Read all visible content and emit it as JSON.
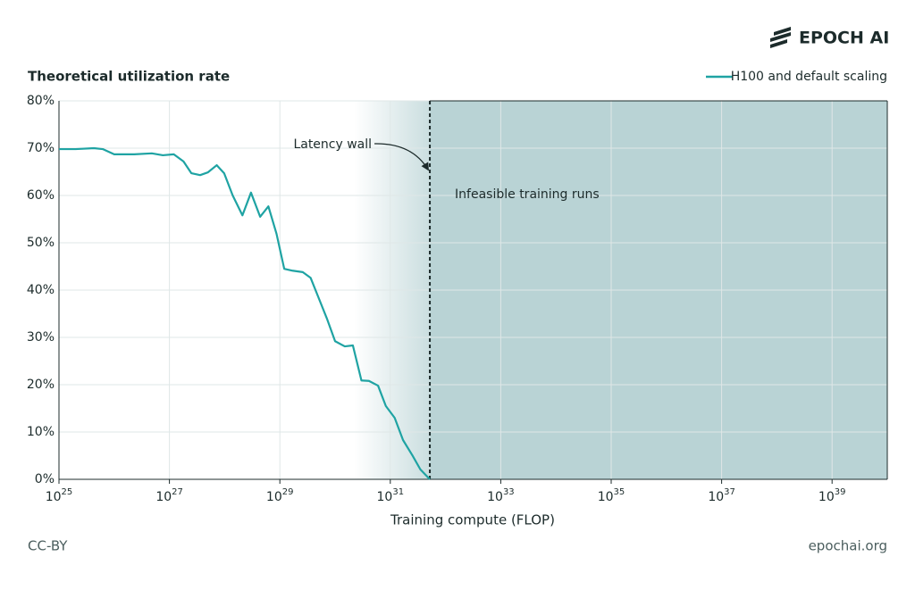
{
  "logo": "EPOCH AI",
  "footer": {
    "left": "CC-BY",
    "right": "epochai.org"
  },
  "chart_data": {
    "type": "line",
    "y_title": "Theoretical utilization rate",
    "x_title": "Training compute (FLOP)",
    "x_scale": "log",
    "grid": true,
    "legend": "top-right",
    "xlim": [
      1e+25,
      1e+40
    ],
    "xticks": [
      {
        "value": 1e+25,
        "label": "10",
        "exponent": "25"
      },
      {
        "value": 1e+27,
        "label": "10",
        "exponent": "27"
      },
      {
        "value": 1e+29,
        "label": "10",
        "exponent": "29"
      },
      {
        "value": 1e+31,
        "label": "10",
        "exponent": "31"
      },
      {
        "value": 1e+33,
        "label": "10",
        "exponent": "33"
      },
      {
        "value": 1e+35,
        "label": "10",
        "exponent": "35"
      },
      {
        "value": 1e+37,
        "label": "10",
        "exponent": "37"
      },
      {
        "value": 1e+39,
        "label": "10",
        "exponent": "39"
      }
    ],
    "ylim": [
      0,
      80
    ],
    "yticks": [
      {
        "value": 0,
        "label": "0%"
      },
      {
        "value": 10,
        "label": "10%"
      },
      {
        "value": 20,
        "label": "20%"
      },
      {
        "value": 30,
        "label": "30%"
      },
      {
        "value": 40,
        "label": "40%"
      },
      {
        "value": 50,
        "label": "50%"
      },
      {
        "value": 60,
        "label": "60%"
      },
      {
        "value": 70,
        "label": "70%"
      },
      {
        "value": 80,
        "label": "80%"
      }
    ],
    "latency_wall": {
      "label": "Latency wall",
      "x": 5.2e+31
    },
    "infeasible_region": {
      "label": "Infeasible training runs",
      "color": "#b9d3d5"
    },
    "series": [
      {
        "name": "H100 and default scaling",
        "color": "#1fa3a3",
        "x": [
          1e+25,
          2e+25,
          4.3e+25,
          6.2e+25,
          1e+26,
          2.3e+26,
          4.8e+26,
          7.6e+26,
          1.2e+27,
          1.8e+27,
          2.5e+27,
          3.6e+27,
          5e+27,
          7.2e+27,
          9.8e+27,
          1.4e+28,
          2.1e+28,
          3e+28,
          4.4e+28,
          6.2e+28,
          8.7e+28,
          1.2e+29,
          1.7e+29,
          2.6e+29,
          3.6e+29,
          4.9e+29,
          7.1e+29,
          1e+30,
          1.5e+30,
          2.1e+30,
          3e+30,
          4.1e+30,
          6e+30,
          8.3e+30,
          1.2e+31,
          1.7e+31,
          2.5e+31,
          3.5e+31,
          5.2e+31
        ],
        "values": [
          69.8,
          69.8,
          70.0,
          69.8,
          68.7,
          68.7,
          68.9,
          68.5,
          68.7,
          67.2,
          64.7,
          64.3,
          64.9,
          66.4,
          64.7,
          60.0,
          55.8,
          60.6,
          55.5,
          57.7,
          51.9,
          44.5,
          44.1,
          43.8,
          42.6,
          38.7,
          34.0,
          29.2,
          28.1,
          28.3,
          20.9,
          20.8,
          19.8,
          15.5,
          13.0,
          8.3,
          5.1,
          2.1,
          0
        ]
      }
    ]
  }
}
